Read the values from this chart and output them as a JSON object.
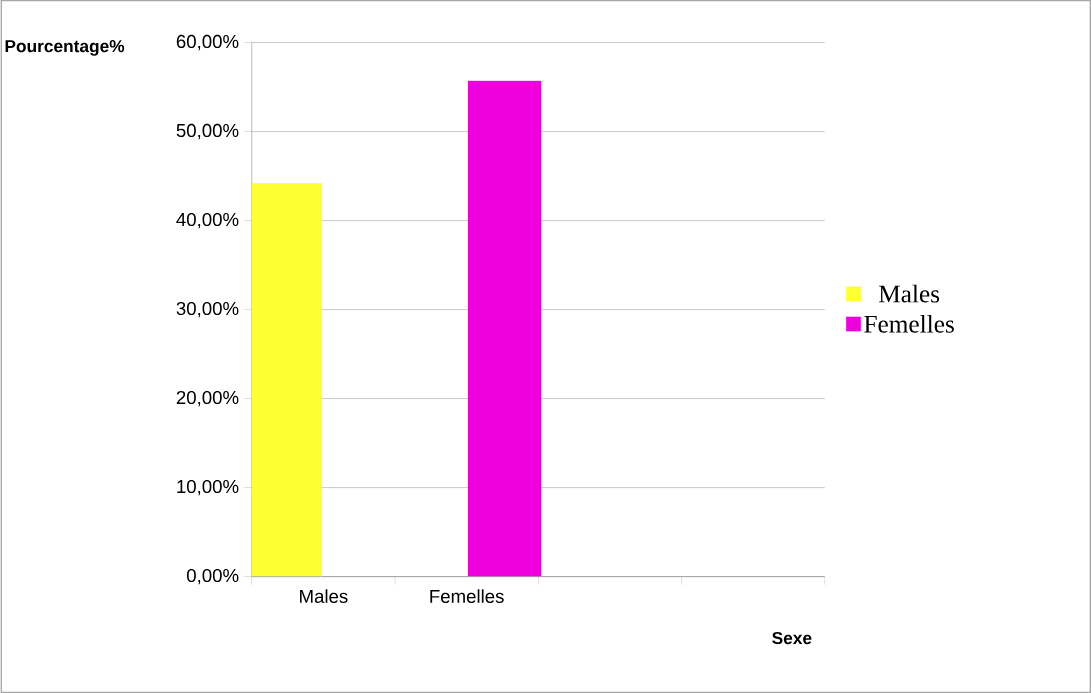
{
  "chart_data": {
    "type": "bar",
    "xlabel": "Sexe",
    "ylabel": "Pourcentage%",
    "categories": [
      "Males",
      "Femelles",
      null,
      null
    ],
    "series": [
      {
        "name": "Males",
        "color": "#ffff33",
        "values": [
          44.2,
          null,
          null,
          null
        ]
      },
      {
        "name": "Femelles",
        "color": "#ee00dd",
        "values": [
          null,
          55.7,
          null,
          null
        ]
      }
    ],
    "ylim": [
      0,
      60
    ],
    "yticks": [
      {
        "value": 0,
        "label": "0,00%"
      },
      {
        "value": 10,
        "label": "10,00%"
      },
      {
        "value": 20,
        "label": "20,00%"
      },
      {
        "value": 30,
        "label": "30,00%"
      },
      {
        "value": 40,
        "label": "40,00%"
      },
      {
        "value": 50,
        "label": "50,00%"
      },
      {
        "value": 60,
        "label": "60,00%"
      }
    ],
    "grid": "y",
    "legend": "right"
  }
}
